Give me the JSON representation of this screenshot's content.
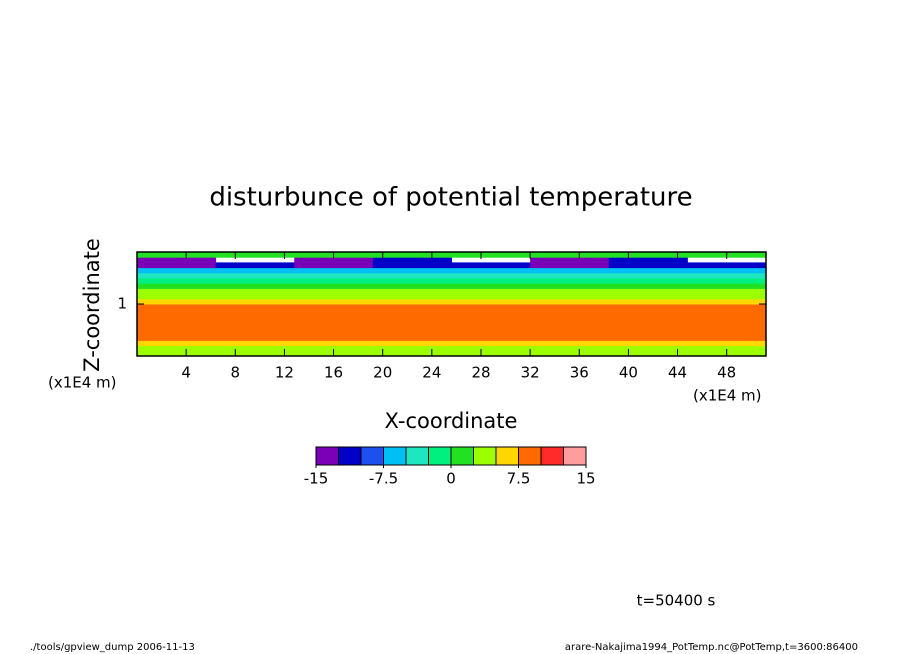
{
  "chart_data": {
    "type": "heatmap",
    "title": "disturbunce of potential temperature",
    "x_label": "X-coordinate",
    "y_label": "Z-coordinate",
    "x_unit": "(x1E4 m)",
    "y_unit": "(x1E4 m)",
    "annotation": "t=50400 s",
    "footer_left": "./tools/gpview_dump  2006-11-13",
    "footer_right": "arare-Nakajima1994_PotTemp.nc@PotTemp,t=3600:86400",
    "xlim": [
      0,
      51.2
    ],
    "ylim": [
      0,
      2
    ],
    "xticks": [
      4,
      8,
      12,
      16,
      20,
      24,
      28,
      32,
      36,
      40,
      44,
      48
    ],
    "yticks": [
      1
    ],
    "x": [
      3.2,
      9.6,
      16,
      22.4,
      28.8,
      35.2,
      41.6,
      48
    ],
    "y": [
      0.05,
      0.15,
      0.25,
      0.35,
      0.45,
      0.55,
      0.65,
      0.75,
      0.85,
      0.95,
      1.05,
      1.15,
      1.25,
      1.35,
      1.45,
      1.55,
      1.65,
      1.75,
      1.85,
      1.95
    ],
    "z": [
      [
        3,
        3,
        3,
        3,
        3,
        3,
        3,
        3
      ],
      [
        3,
        4,
        3,
        3,
        4,
        3,
        3,
        3
      ],
      [
        6,
        6,
        6,
        6,
        6,
        6,
        6,
        6
      ],
      [
        8,
        8,
        8,
        8,
        8,
        8,
        8,
        8
      ],
      [
        8,
        8,
        8,
        8,
        8,
        8,
        8,
        8
      ],
      [
        8,
        8,
        8,
        8,
        8,
        8,
        8,
        8
      ],
      [
        8,
        8,
        8,
        8,
        8,
        8,
        8,
        8
      ],
      [
        8,
        8,
        8,
        8,
        8,
        8,
        8,
        8
      ],
      [
        8,
        8,
        8,
        8,
        8,
        8,
        8,
        8
      ],
      [
        8,
        8,
        8,
        8,
        8,
        8,
        8,
        8
      ],
      [
        6,
        6,
        6,
        6,
        6,
        6,
        6,
        6
      ],
      [
        4,
        4,
        4,
        4,
        4,
        4,
        4,
        4
      ],
      [
        3,
        3,
        3,
        3,
        3,
        3,
        3,
        3
      ],
      [
        1,
        1,
        1,
        1,
        1,
        1,
        1,
        1
      ],
      [
        -1,
        -1,
        -1,
        -1,
        -1,
        -1,
        -1,
        -1
      ],
      [
        -4,
        -4,
        -4,
        -4,
        -4,
        -4,
        -4,
        -4
      ],
      [
        -6,
        -6,
        -6,
        -6,
        -6,
        -6,
        -6,
        -6
      ],
      [
        -13,
        -11,
        -13,
        -11,
        -11,
        -13,
        -11,
        -11
      ],
      [
        -13,
        null,
        -13,
        -11,
        null,
        -13,
        -11,
        null
      ],
      [
        2,
        2,
        2,
        2,
        2,
        2,
        2,
        2
      ]
    ],
    "levels": [
      -15,
      -12.5,
      -10,
      -7.5,
      -5,
      -2.5,
      0,
      2.5,
      5,
      7.5,
      10,
      12.5,
      15
    ],
    "colors": [
      "#7a00b8",
      "#0000c8",
      "#1e50f0",
      "#00bff5",
      "#1de6c0",
      "#00f07f",
      "#22e022",
      "#9cff00",
      "#ffd700",
      "#ff6a00",
      "#ff2a2a",
      "#ff9c9c"
    ],
    "colorbar_ticks": [
      -15,
      -7.5,
      0,
      7.5,
      15
    ]
  }
}
